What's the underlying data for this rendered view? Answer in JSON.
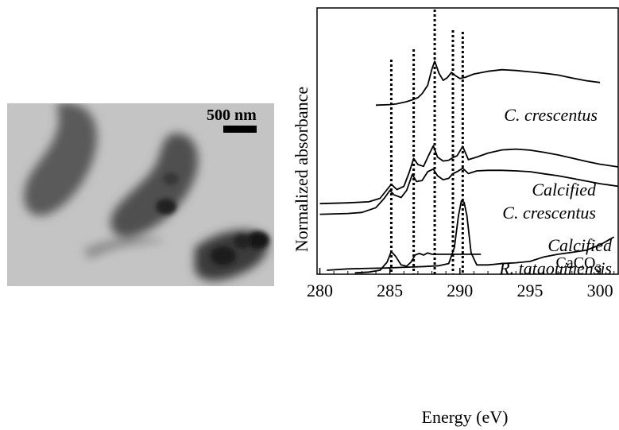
{
  "micrograph": {
    "scale_bar_label": "500 nm"
  },
  "chart_data": {
    "type": "line",
    "title": "",
    "xlabel": "Energy (eV)",
    "ylabel": "Normalized absorbance",
    "xlim": [
      279.8,
      301.3
    ],
    "ylim": [
      0,
      1
    ],
    "x_ticks": [
      280,
      285,
      290,
      295,
      300
    ],
    "y_ticks": [],
    "legend": "none",
    "grid": false,
    "reference_lines": [
      285.1,
      286.7,
      288.2,
      289.5,
      290.2
    ],
    "series": [
      {
        "name": "C. crescentus",
        "label_lines": [
          "C. crescentus"
        ],
        "x": [
          284.0,
          285.0,
          285.5,
          286.2,
          286.6,
          287.0,
          287.3,
          287.7,
          288.0,
          288.2,
          288.5,
          288.8,
          289.1,
          289.4,
          289.7,
          290.0,
          290.4,
          291.0,
          292.0,
          293.0,
          294.0,
          295.0,
          296.0,
          297.0,
          298.0,
          299.0,
          300.0
        ],
        "y": [
          0.635,
          0.637,
          0.64,
          0.648,
          0.655,
          0.663,
          0.678,
          0.71,
          0.77,
          0.8,
          0.755,
          0.728,
          0.738,
          0.758,
          0.745,
          0.735,
          0.74,
          0.752,
          0.762,
          0.768,
          0.765,
          0.76,
          0.755,
          0.748,
          0.737,
          0.727,
          0.72
        ]
      },
      {
        "name": "Calcified C. crescentus",
        "label_lines": [
          "Calcified",
          "C. crescentus"
        ],
        "x": [
          280.0,
          282.0,
          283.5,
          284.3,
          284.8,
          285.1,
          285.5,
          286.0,
          286.4,
          286.7,
          287.0,
          287.4,
          287.8,
          288.1,
          288.4,
          288.8,
          289.2,
          289.5,
          289.8,
          290.2,
          290.6,
          291.2,
          292.0,
          293.0,
          294.0,
          295.0,
          296.0,
          297.0,
          298.0,
          299.0,
          300.0,
          301.3
        ],
        "y": [
          0.265,
          0.268,
          0.272,
          0.285,
          0.318,
          0.338,
          0.318,
          0.33,
          0.385,
          0.435,
          0.412,
          0.405,
          0.45,
          0.482,
          0.44,
          0.425,
          0.428,
          0.438,
          0.445,
          0.48,
          0.43,
          0.44,
          0.455,
          0.467,
          0.47,
          0.466,
          0.458,
          0.448,
          0.436,
          0.424,
          0.413,
          0.403
        ]
      },
      {
        "name": "Calcified R. tataouinensis",
        "label_lines": [
          "Calcified",
          "R. tataouinensis"
        ],
        "x": [
          280.0,
          282.0,
          283.0,
          284.0,
          284.6,
          285.0,
          285.3,
          285.8,
          286.2,
          286.6,
          286.9,
          287.3,
          287.7,
          288.1,
          288.4,
          288.8,
          289.2,
          289.5,
          289.8,
          290.2,
          290.6,
          291.2,
          292.0,
          293.0,
          294.0,
          295.0,
          296.0,
          297.0,
          298.0,
          299.0,
          300.0,
          301.3
        ],
        "y": [
          0.225,
          0.228,
          0.232,
          0.25,
          0.285,
          0.315,
          0.298,
          0.288,
          0.315,
          0.375,
          0.348,
          0.352,
          0.385,
          0.395,
          0.37,
          0.355,
          0.36,
          0.378,
          0.385,
          0.398,
          0.378,
          0.388,
          0.39,
          0.39,
          0.388,
          0.385,
          0.377,
          0.37,
          0.36,
          0.35,
          0.34,
          0.33
        ]
      },
      {
        "name": "CaCO3",
        "label_lines": [
          "CaCO3"
        ],
        "x": [
          280.5,
          282.0,
          283.5,
          284.5,
          285.5,
          286.5,
          287.5,
          288.5,
          289.2,
          289.6,
          289.9,
          290.1,
          290.3,
          290.5,
          290.8,
          291.2,
          292.0,
          293.0,
          294.0,
          295.0,
          296.0,
          297.0,
          298.0,
          299.0,
          300.0,
          301.0
        ],
        "y": [
          0.015,
          0.02,
          0.022,
          0.023,
          0.025,
          0.027,
          0.029,
          0.032,
          0.04,
          0.1,
          0.22,
          0.275,
          0.27,
          0.22,
          0.08,
          0.035,
          0.035,
          0.04,
          0.043,
          0.048,
          0.065,
          0.075,
          0.082,
          0.09,
          0.11,
          0.14
        ]
      },
      {
        "name": "",
        "label_lines": [],
        "x": [
          282.5,
          283.5,
          284.3,
          284.8,
          285.1,
          285.4,
          285.8,
          286.2,
          286.5,
          286.8,
          287.1,
          287.4,
          287.7,
          288.0,
          288.3,
          288.6,
          288.9,
          289.3,
          289.7,
          290.2,
          290.8,
          291.5
        ],
        "y": [
          0.005,
          0.008,
          0.015,
          0.045,
          0.085,
          0.068,
          0.035,
          0.03,
          0.045,
          0.072,
          0.078,
          0.072,
          0.08,
          0.075,
          0.075,
          0.075,
          0.075,
          0.075,
          0.075,
          0.075,
          0.075,
          0.075
        ]
      }
    ]
  }
}
